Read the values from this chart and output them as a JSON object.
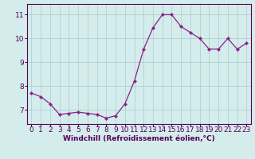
{
  "x": [
    0,
    1,
    2,
    3,
    4,
    5,
    6,
    7,
    8,
    9,
    10,
    11,
    12,
    13,
    14,
    15,
    16,
    17,
    18,
    19,
    20,
    21,
    22,
    23
  ],
  "y": [
    7.7,
    7.55,
    7.25,
    6.8,
    6.85,
    6.9,
    6.85,
    6.8,
    6.65,
    6.75,
    7.25,
    8.2,
    9.55,
    10.45,
    11.0,
    11.0,
    10.5,
    10.25,
    10.0,
    9.55,
    9.55,
    10.0,
    9.55,
    9.8
  ],
  "line_color": "#882288",
  "marker": "D",
  "marker_size": 2.2,
  "bg_color": "#d4ecec",
  "grid_color": "#aacccc",
  "xlabel": "Windchill (Refroidissement éolien,°C)",
  "ylabel_ticks": [
    7,
    8,
    9,
    10,
    11
  ],
  "xlim": [
    -0.5,
    23.5
  ],
  "ylim": [
    6.4,
    11.45
  ],
  "xlabel_fontsize": 6.5,
  "tick_fontsize": 6.5,
  "tick_color": "#550055",
  "spine_color": "#550055",
  "linewidth": 0.9
}
